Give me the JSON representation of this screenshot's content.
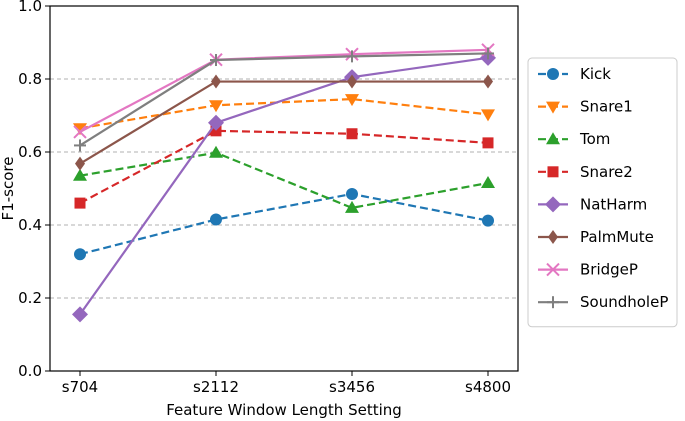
{
  "chart_data": {
    "type": "line",
    "xlabel": "Feature Window Length Setting",
    "ylabel": "F1-score",
    "categories": [
      "s704",
      "s2112",
      "s3456",
      "s4800"
    ],
    "ylim": [
      0.0,
      1.0
    ],
    "yticks": [
      "0.0",
      "0.2",
      "0.4",
      "0.6",
      "0.8",
      "1.0"
    ],
    "grid": "horizontal dashed at 0.2, 0.4, 0.6, 0.8",
    "legend_position": "right, outside plot",
    "series": [
      {
        "name": "Kick",
        "values": [
          0.32,
          0.415,
          0.485,
          0.412
        ],
        "color": "#1f77b4",
        "marker": "circle",
        "linestyle": "dashed"
      },
      {
        "name": "Snare1",
        "values": [
          0.665,
          0.728,
          0.745,
          0.703
        ],
        "color": "#ff7f0e",
        "marker": "triangle-down",
        "linestyle": "dashed"
      },
      {
        "name": "Tom",
        "values": [
          0.535,
          0.598,
          0.447,
          0.515
        ],
        "color": "#2ca02c",
        "marker": "triangle-up",
        "linestyle": "dashed"
      },
      {
        "name": "Snare2",
        "values": [
          0.46,
          0.658,
          0.65,
          0.625
        ],
        "color": "#d62728",
        "marker": "square",
        "linestyle": "dashed"
      },
      {
        "name": "NatHarm",
        "values": [
          0.155,
          0.68,
          0.805,
          0.858
        ],
        "color": "#9467bd",
        "marker": "diamond",
        "linestyle": "solid"
      },
      {
        "name": "PalmMute",
        "values": [
          0.568,
          0.793,
          0.793,
          0.793
        ],
        "color": "#8c564b",
        "marker": "thin-diamond",
        "linestyle": "solid"
      },
      {
        "name": "BridgeP",
        "values": [
          0.655,
          0.853,
          0.868,
          0.88
        ],
        "color": "#e377c2",
        "marker": "x",
        "linestyle": "solid"
      },
      {
        "name": "SoundholeP",
        "values": [
          0.618,
          0.852,
          0.862,
          0.87
        ],
        "color": "#7f7f7f",
        "marker": "plus",
        "linestyle": "solid"
      }
    ]
  }
}
